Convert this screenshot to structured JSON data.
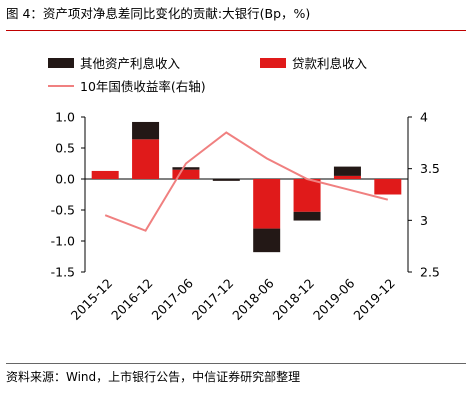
{
  "title": "图 4：资产项对净息差同比变化的贡献:大银行(Bp，%)",
  "source": "资料来源：Wind，上市银行公告，中信证券研究部整理",
  "chart_data": {
    "type": "bar",
    "stacked": true,
    "categories": [
      "2015-12",
      "2016-12",
      "2017-06",
      "2017-12",
      "2018-06",
      "2018-12",
      "2019-06",
      "2019-12"
    ],
    "series": [
      {
        "name": "其他资产利息收入",
        "color": "#231816",
        "axis": "left",
        "values": [
          0.0,
          0.28,
          0.04,
          -0.03,
          -0.38,
          -0.14,
          0.15,
          0.0
        ]
      },
      {
        "name": "贷款利息收入",
        "color": "#e01a1a",
        "axis": "left",
        "values": [
          0.13,
          0.64,
          0.15,
          0.0,
          -0.8,
          -0.53,
          0.05,
          -0.25
        ]
      },
      {
        "name": "10年国债收益率(右轴)",
        "type": "line",
        "color": "#f08080",
        "axis": "right",
        "values": [
          3.05,
          2.9,
          3.55,
          3.85,
          3.6,
          3.4,
          3.3,
          3.2
        ]
      }
    ],
    "ylim": [
      -1.5,
      1.0
    ],
    "yticks": [
      "1.0",
      "0.5",
      "0.0",
      "-0.5",
      "-1.0",
      "-1.5"
    ],
    "y2lim": [
      2.5,
      4.0
    ],
    "y2ticks": [
      "4",
      "3.5",
      "3",
      "2.5"
    ],
    "legend_position": "top"
  }
}
